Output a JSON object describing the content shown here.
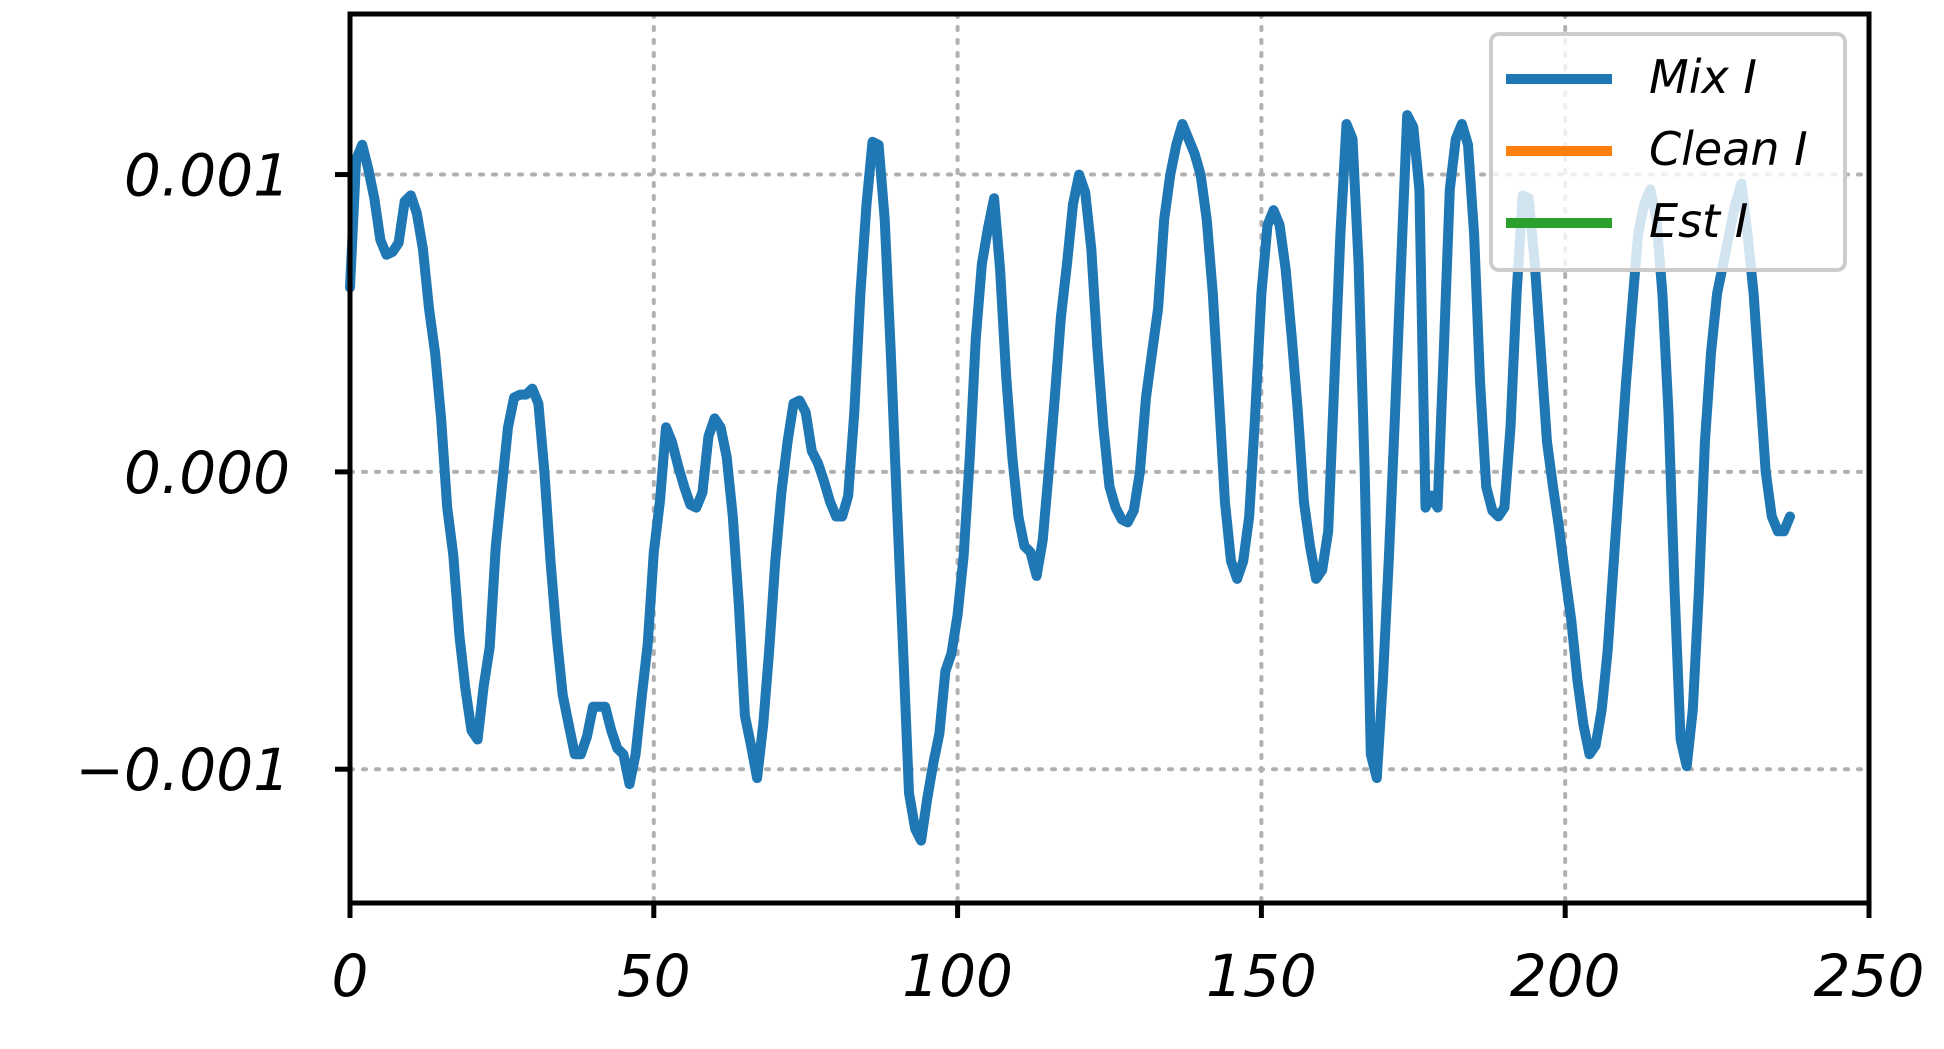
{
  "chart_data": {
    "type": "line",
    "title": "",
    "xlabel": "",
    "ylabel": "",
    "xlim": [
      0,
      250
    ],
    "ylim": [
      -0.00145,
      0.00154
    ],
    "x_ticks": [
      0,
      50,
      100,
      150,
      200,
      250
    ],
    "x_tick_labels": [
      "0",
      "50",
      "100",
      "150",
      "200",
      "250"
    ],
    "y_ticks": [
      0.001,
      0.0,
      -0.001
    ],
    "y_tick_labels": [
      "0.001",
      "0.000",
      "−0.001"
    ],
    "grid": true,
    "legend_position": "top-right",
    "series": [
      {
        "name": "Mix I",
        "color": "#1f77b4",
        "points": [
          [
            0,
            0.00062
          ],
          [
            1,
            0.00105
          ],
          [
            2,
            0.0011
          ],
          [
            3,
            0.00102
          ],
          [
            4,
            0.00092
          ],
          [
            5,
            0.00078
          ],
          [
            6,
            0.00073
          ],
          [
            7,
            0.00074
          ],
          [
            8,
            0.00077
          ],
          [
            9,
            0.00091
          ],
          [
            10,
            0.00093
          ],
          [
            11,
            0.00087
          ],
          [
            12,
            0.00075
          ],
          [
            13,
            0.00055
          ],
          [
            14,
            0.0004
          ],
          [
            15,
            0.00018
          ],
          [
            16,
            -0.00012
          ],
          [
            17,
            -0.00028
          ],
          [
            18,
            -0.00055
          ],
          [
            19,
            -0.00073
          ],
          [
            20,
            -0.00087
          ],
          [
            21,
            -0.0009
          ],
          [
            22,
            -0.00072
          ],
          [
            23,
            -0.00059
          ],
          [
            24,
            -0.00025
          ],
          [
            25,
            -5e-05
          ],
          [
            26,
            0.00015
          ],
          [
            27,
            0.00025
          ],
          [
            28,
            0.00026
          ],
          [
            29,
            0.00026
          ],
          [
            30,
            0.00028
          ],
          [
            31,
            0.00023
          ],
          [
            32,
            0.0
          ],
          [
            33,
            -0.0003
          ],
          [
            34,
            -0.00055
          ],
          [
            35,
            -0.00075
          ],
          [
            36,
            -0.00085
          ],
          [
            37,
            -0.00095
          ],
          [
            38,
            -0.00095
          ],
          [
            39,
            -0.00089
          ],
          [
            40,
            -0.00079
          ],
          [
            41,
            -0.00079
          ],
          [
            42,
            -0.00079
          ],
          [
            43,
            -0.00087
          ],
          [
            44,
            -0.00093
          ],
          [
            45,
            -0.00095
          ],
          [
            46,
            -0.00105
          ],
          [
            47,
            -0.00095
          ],
          [
            48,
            -0.00076
          ],
          [
            49,
            -0.00058
          ],
          [
            50,
            -0.00027
          ],
          [
            51,
            -0.0001
          ],
          [
            52,
            0.00015
          ],
          [
            53,
            0.0001
          ],
          [
            54,
            2e-05
          ],
          [
            55,
            -5e-05
          ],
          [
            56,
            -0.00011
          ],
          [
            57,
            -0.00012
          ],
          [
            58,
            -7e-05
          ],
          [
            59,
            0.00012
          ],
          [
            60,
            0.00018
          ],
          [
            61,
            0.00015
          ],
          [
            62,
            5e-05
          ],
          [
            63,
            -0.00015
          ],
          [
            64,
            -0.00045
          ],
          [
            65,
            -0.00082
          ],
          [
            66,
            -0.00092
          ],
          [
            67,
            -0.00103
          ],
          [
            68,
            -0.00085
          ],
          [
            69,
            -0.0006
          ],
          [
            70,
            -0.0003
          ],
          [
            71,
            -7e-05
          ],
          [
            72,
            0.0001
          ],
          [
            73,
            0.00023
          ],
          [
            74,
            0.00024
          ],
          [
            75,
            0.0002
          ],
          [
            76,
            7e-05
          ],
          [
            77,
            3e-05
          ],
          [
            78,
            -3e-05
          ],
          [
            79,
            -0.0001
          ],
          [
            80,
            -0.00015
          ],
          [
            81,
            -0.00015
          ],
          [
            82,
            -8e-05
          ],
          [
            83,
            0.0002
          ],
          [
            84,
            0.0006
          ],
          [
            85,
            0.0009
          ],
          [
            86,
            0.00111
          ],
          [
            87,
            0.0011
          ],
          [
            88,
            0.00085
          ],
          [
            89,
            0.0004
          ],
          [
            90,
            -0.0001
          ],
          [
            91,
            -0.00058
          ],
          [
            92,
            -0.00108
          ],
          [
            93,
            -0.0012
          ],
          [
            94,
            -0.00124
          ],
          [
            95,
            -0.0011
          ],
          [
            96,
            -0.00098
          ],
          [
            97,
            -0.00088
          ],
          [
            98,
            -0.00067
          ],
          [
            99,
            -0.00061
          ],
          [
            100,
            -0.00048
          ],
          [
            101,
            -0.00028
          ],
          [
            102,
            5e-05
          ],
          [
            103,
            0.00045
          ],
          [
            104,
            0.0007
          ],
          [
            105,
            0.00082
          ],
          [
            106,
            0.00092
          ],
          [
            107,
            0.00068
          ],
          [
            108,
            0.00032
          ],
          [
            109,
            5e-05
          ],
          [
            110,
            -0.00015
          ],
          [
            111,
            -0.00025
          ],
          [
            112,
            -0.00027
          ],
          [
            113,
            -0.00035
          ],
          [
            114,
            -0.00023
          ],
          [
            115,
            0.0
          ],
          [
            116,
            0.00025
          ],
          [
            117,
            0.00052
          ],
          [
            118,
            0.0007
          ],
          [
            119,
            0.0009
          ],
          [
            120,
            0.001
          ],
          [
            121,
            0.00094
          ],
          [
            122,
            0.00075
          ],
          [
            123,
            0.00042
          ],
          [
            124,
            0.00015
          ],
          [
            125,
            -5e-05
          ],
          [
            126,
            -0.00012
          ],
          [
            127,
            -0.00016
          ],
          [
            128,
            -0.00017
          ],
          [
            129,
            -0.00013
          ],
          [
            130,
            0.0
          ],
          [
            131,
            0.00025
          ],
          [
            132,
            0.0004
          ],
          [
            133,
            0.00055
          ],
          [
            134,
            0.00085
          ],
          [
            135,
            0.001
          ],
          [
            136,
            0.0011
          ],
          [
            137,
            0.00117
          ],
          [
            138,
            0.00112
          ],
          [
            139,
            0.00107
          ],
          [
            140,
            0.001
          ],
          [
            141,
            0.00085
          ],
          [
            142,
            0.0006
          ],
          [
            143,
            0.00025
          ],
          [
            144,
            -0.0001
          ],
          [
            145,
            -0.0003
          ],
          [
            146,
            -0.00036
          ],
          [
            147,
            -0.0003
          ],
          [
            148,
            -0.00015
          ],
          [
            149,
            0.0002
          ],
          [
            150,
            0.0006
          ],
          [
            151,
            0.00083
          ],
          [
            152,
            0.00088
          ],
          [
            153,
            0.00083
          ],
          [
            154,
            0.00068
          ],
          [
            155,
            0.00045
          ],
          [
            156,
            0.0002
          ],
          [
            157,
            -0.0001
          ],
          [
            158,
            -0.00025
          ],
          [
            159,
            -0.00036
          ],
          [
            160,
            -0.00033
          ],
          [
            161,
            -0.0002
          ],
          [
            162,
            0.0003
          ],
          [
            163,
            0.0008
          ],
          [
            164,
            0.00117
          ],
          [
            165,
            0.00112
          ],
          [
            166,
            0.0007
          ],
          [
            167,
            0.0
          ],
          [
            168,
            -0.00095
          ],
          [
            169,
            -0.00103
          ],
          [
            170,
            -0.0007
          ],
          [
            171,
            -0.00028
          ],
          [
            172,
            0.0002
          ],
          [
            173,
            0.0007
          ],
          [
            174,
            0.0012
          ],
          [
            175,
            0.00116
          ],
          [
            176,
            0.00095
          ],
          [
            177,
            -0.00012
          ],
          [
            178,
            -8e-05
          ],
          [
            179,
            -0.00012
          ],
          [
            180,
            0.0004
          ],
          [
            181,
            0.00095
          ],
          [
            182,
            0.00112
          ],
          [
            183,
            0.00117
          ],
          [
            184,
            0.0011
          ],
          [
            185,
            0.0008
          ],
          [
            186,
            0.0003
          ],
          [
            187,
            -5e-05
          ],
          [
            188,
            -0.00013
          ],
          [
            189,
            -0.00015
          ],
          [
            190,
            -0.00012
          ],
          [
            191,
            0.00015
          ],
          [
            192,
            0.0006
          ],
          [
            193,
            0.00093
          ],
          [
            194,
            0.00092
          ],
          [
            195,
            0.0007
          ],
          [
            196,
            0.0004
          ],
          [
            197,
            0.0001
          ],
          [
            198,
            -5e-05
          ],
          [
            199,
            -0.00019
          ],
          [
            200,
            -0.00035
          ],
          [
            201,
            -0.0005
          ],
          [
            202,
            -0.0007
          ],
          [
            203,
            -0.00085
          ],
          [
            204,
            -0.00095
          ],
          [
            205,
            -0.00092
          ],
          [
            206,
            -0.0008
          ],
          [
            207,
            -0.0006
          ],
          [
            208,
            -0.0003
          ],
          [
            209,
            0.0
          ],
          [
            210,
            0.0003
          ],
          [
            211,
            0.00055
          ],
          [
            212,
            0.0008
          ],
          [
            213,
            0.0009
          ],
          [
            214,
            0.00095
          ],
          [
            215,
            0.00085
          ],
          [
            216,
            0.0006
          ],
          [
            217,
            0.0002
          ],
          [
            218,
            -0.0004
          ],
          [
            219,
            -0.0009
          ],
          [
            220,
            -0.00099
          ],
          [
            221,
            -0.0008
          ],
          [
            222,
            -0.0004
          ],
          [
            223,
            0.0001
          ],
          [
            224,
            0.0004
          ],
          [
            225,
            0.0006
          ],
          [
            226,
            0.0007
          ],
          [
            227,
            0.0008
          ],
          [
            228,
            0.0009
          ],
          [
            229,
            0.00097
          ],
          [
            230,
            0.0008
          ],
          [
            231,
            0.0006
          ],
          [
            232,
            0.0003
          ],
          [
            233,
            0.0
          ],
          [
            234,
            -0.00015
          ],
          [
            235,
            -0.0002
          ],
          [
            236,
            -0.0002
          ],
          [
            237,
            -0.00015
          ]
        ]
      },
      {
        "name": "Clean I",
        "color": "#ff7f0e",
        "points": []
      },
      {
        "name": "Est I",
        "color": "#2ca02c",
        "points": []
      }
    ]
  }
}
